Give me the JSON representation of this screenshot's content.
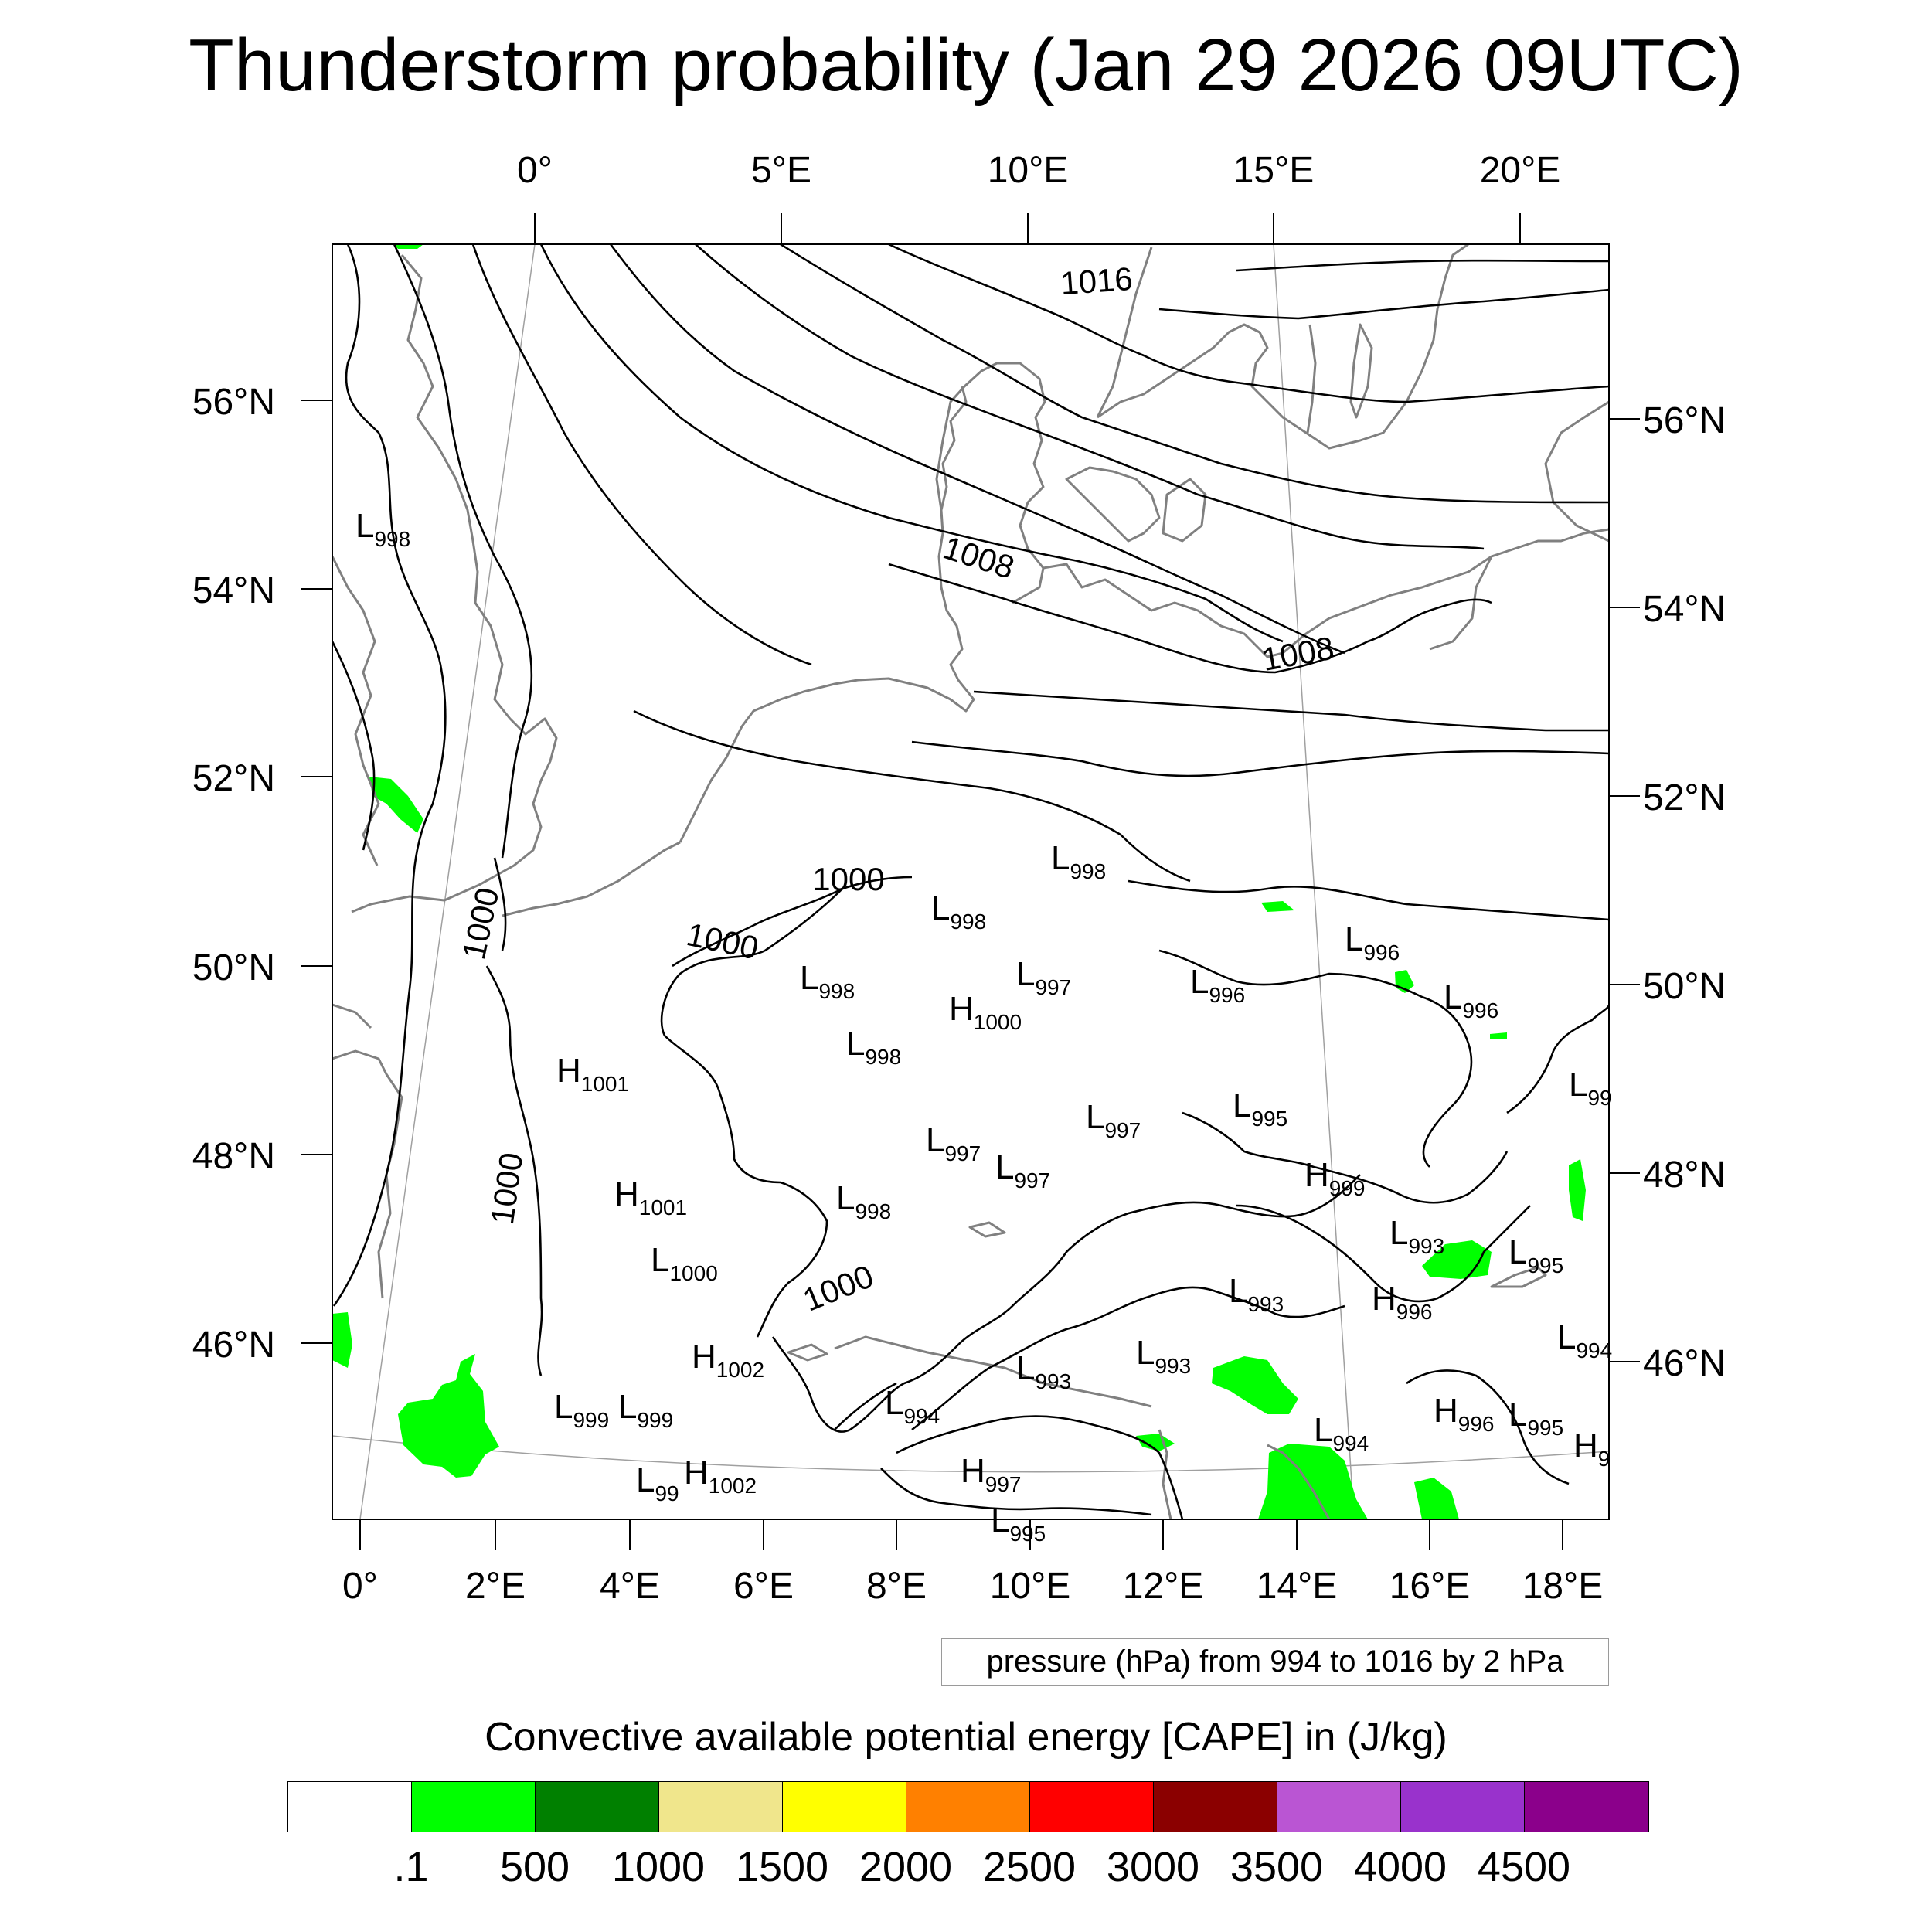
{
  "title": "Thunderstorm probability (Jan 29 2026 09UTC)",
  "map": {
    "top_lon_labels": [
      "0°",
      "5°E",
      "10°E",
      "15°E",
      "20°E"
    ],
    "bottom_lon_labels": [
      "0°",
      "2°E",
      "4°E",
      "6°E",
      "8°E",
      "10°E",
      "12°E",
      "14°E",
      "16°E",
      "18°E"
    ],
    "left_lat_labels": [
      "56°N",
      "54°N",
      "52°N",
      "50°N",
      "48°N",
      "46°N"
    ],
    "right_lat_labels": [
      "56°N",
      "54°N",
      "52°N",
      "50°N",
      "48°N",
      "46°N"
    ],
    "isobar_labels": [
      "1016",
      "1008",
      "1008",
      "1000",
      "1000",
      "1000",
      "1000",
      "1000"
    ],
    "pressure_centers": [
      {
        "sym": "L",
        "val": "998"
      },
      {
        "sym": "L",
        "val": "998"
      },
      {
        "sym": "L",
        "val": "998"
      },
      {
        "sym": "L",
        "val": "997"
      },
      {
        "sym": "L",
        "val": "996"
      },
      {
        "sym": "L",
        "val": "996"
      },
      {
        "sym": "L",
        "val": "996"
      },
      {
        "sym": "L",
        "val": "998"
      },
      {
        "sym": "H",
        "val": "1000"
      },
      {
        "sym": "L",
        "val": "998"
      },
      {
        "sym": "H",
        "val": "1001"
      },
      {
        "sym": "L",
        "val": "99"
      },
      {
        "sym": "L",
        "val": "997"
      },
      {
        "sym": "L",
        "val": "995"
      },
      {
        "sym": "L",
        "val": "997"
      },
      {
        "sym": "L",
        "val": "997"
      },
      {
        "sym": "H",
        "val": "999"
      },
      {
        "sym": "H",
        "val": "1001"
      },
      {
        "sym": "L",
        "val": "998"
      },
      {
        "sym": "L",
        "val": "993"
      },
      {
        "sym": "L",
        "val": "995"
      },
      {
        "sym": "L",
        "val": "1000"
      },
      {
        "sym": "L",
        "val": "993"
      },
      {
        "sym": "H",
        "val": "996"
      },
      {
        "sym": "L",
        "val": "994"
      },
      {
        "sym": "H",
        "val": "1002"
      },
      {
        "sym": "L",
        "val": "993"
      },
      {
        "sym": "L",
        "val": "993"
      },
      {
        "sym": "L",
        "val": "999"
      },
      {
        "sym": "L",
        "val": "999"
      },
      {
        "sym": "L",
        "val": "994"
      },
      {
        "sym": "H",
        "val": "996"
      },
      {
        "sym": "L",
        "val": "995"
      },
      {
        "sym": "L",
        "val": "994"
      },
      {
        "sym": "H",
        "val": "9"
      },
      {
        "sym": "L",
        "val": "99"
      },
      {
        "sym": "H",
        "val": "1002"
      },
      {
        "sym": "H",
        "val": "997"
      },
      {
        "sym": "L",
        "val": "995"
      }
    ],
    "colors": {
      "coast": "#808080",
      "isobar": "#000000",
      "cape_low": "#00ff00",
      "frame": "#000000"
    }
  },
  "caption": "pressure (hPa) from 994 to 1016 by 2 hPa",
  "colorbar": {
    "title": "Convective available potential energy [CAPE] in (J/kg)",
    "colors": [
      "#ffffff",
      "#00ff00",
      "#008000",
      "#f0e68c",
      "#ffff00",
      "#ff8000",
      "#ff0000",
      "#8b0000",
      "#ba55d3",
      "#9932cc",
      "#8b008b"
    ],
    "tick_labels": [
      ".1",
      "500",
      "1000",
      "1500",
      "2000",
      "2500",
      "3000",
      "3500",
      "4000",
      "4500"
    ]
  }
}
